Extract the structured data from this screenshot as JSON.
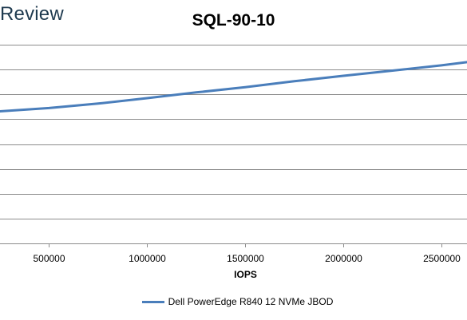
{
  "brand": {
    "text": "Review"
  },
  "chart_data": {
    "type": "line",
    "title": "SQL-90-10",
    "xlabel": "IOPS",
    "ylabel": "",
    "xlim": [
      250000,
      2630000
    ],
    "ylim": [
      0,
      9
    ],
    "x_ticks": [
      500000,
      1000000,
      1500000,
      2000000,
      2500000
    ],
    "x_tick_labels": [
      "500000",
      "1000000",
      "1500000",
      "2000000",
      "2500000"
    ],
    "y_gridlines": [
      1,
      2,
      3,
      4,
      5,
      6,
      7,
      8
    ],
    "grid": true,
    "legend_position": "bottom",
    "series": [
      {
        "name": "Dell PowerEdge R840 12 NVMe JBOD",
        "color": "#4a7ebb",
        "x": [
          250000,
          500000,
          750000,
          1000000,
          1250000,
          1500000,
          1750000,
          2000000,
          2250000,
          2500000,
          2630000
        ],
        "y": [
          5.32,
          5.45,
          5.63,
          5.85,
          6.08,
          6.29,
          6.53,
          6.75,
          6.96,
          7.17,
          7.3
        ]
      }
    ]
  }
}
